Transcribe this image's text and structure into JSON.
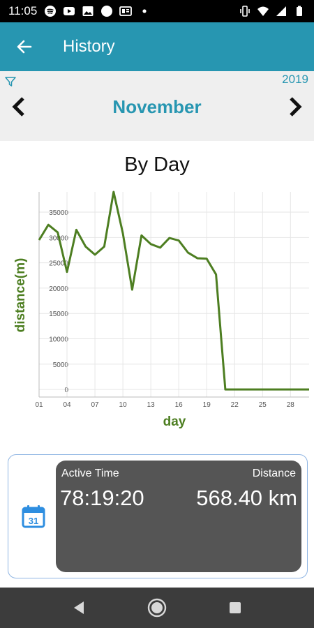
{
  "status_bar": {
    "time": "11:05",
    "left_icons": [
      "spotify-icon",
      "youtube-icon",
      "image-icon",
      "circle-icon",
      "news-icon",
      "dot-icon"
    ],
    "right_icons": [
      "vibrate-icon",
      "wifi-icon",
      "signal-icon",
      "battery-icon"
    ]
  },
  "header": {
    "title": "History",
    "back_icon": "arrow-left-icon",
    "color": "#2796b1"
  },
  "period": {
    "year": "2019",
    "month": "November",
    "filter_icon": "filter-icon",
    "prev_icon": "chevron-left-icon",
    "next_icon": "chevron-right-icon"
  },
  "chart_data": {
    "type": "line",
    "title": "By Day",
    "xlabel": "day",
    "ylabel": "distance(m)",
    "x_tick_labels": [
      "01",
      "04",
      "07",
      "10",
      "13",
      "16",
      "19",
      "22",
      "25",
      "28"
    ],
    "y_tick_labels": [
      "0",
      "5000",
      "10000",
      "15000",
      "20000",
      "25000",
      "30000",
      "35000"
    ],
    "ylim": [
      -1500,
      39000
    ],
    "xlim": [
      1,
      30
    ],
    "grid": true,
    "line_color": "#4d7e21",
    "series": [
      {
        "x": [
          1,
          2,
          3,
          4,
          5,
          6,
          7,
          8,
          9,
          10,
          11,
          12,
          13,
          14,
          15,
          16,
          17,
          18,
          19,
          20,
          21,
          22,
          23,
          24,
          25,
          26,
          27,
          28,
          29,
          30
        ],
        "values": [
          29500,
          32500,
          31000,
          23200,
          31500,
          28200,
          26600,
          28200,
          39000,
          30800,
          19700,
          30400,
          28700,
          28000,
          29900,
          29400,
          27000,
          25900,
          25800,
          22700,
          0,
          0,
          0,
          0,
          0,
          0,
          0,
          0,
          0,
          0
        ]
      }
    ]
  },
  "summary": {
    "calendar_icon": "calendar-icon",
    "calendar_day": "31",
    "active_time_label": "Active Time",
    "active_time_value": "78:19:20",
    "distance_label": "Distance",
    "distance_value": "568.40 km"
  },
  "nav_bar": {
    "back_icon": "nav-back-icon",
    "home_icon": "nav-home-icon",
    "recents_icon": "nav-recents-icon"
  }
}
